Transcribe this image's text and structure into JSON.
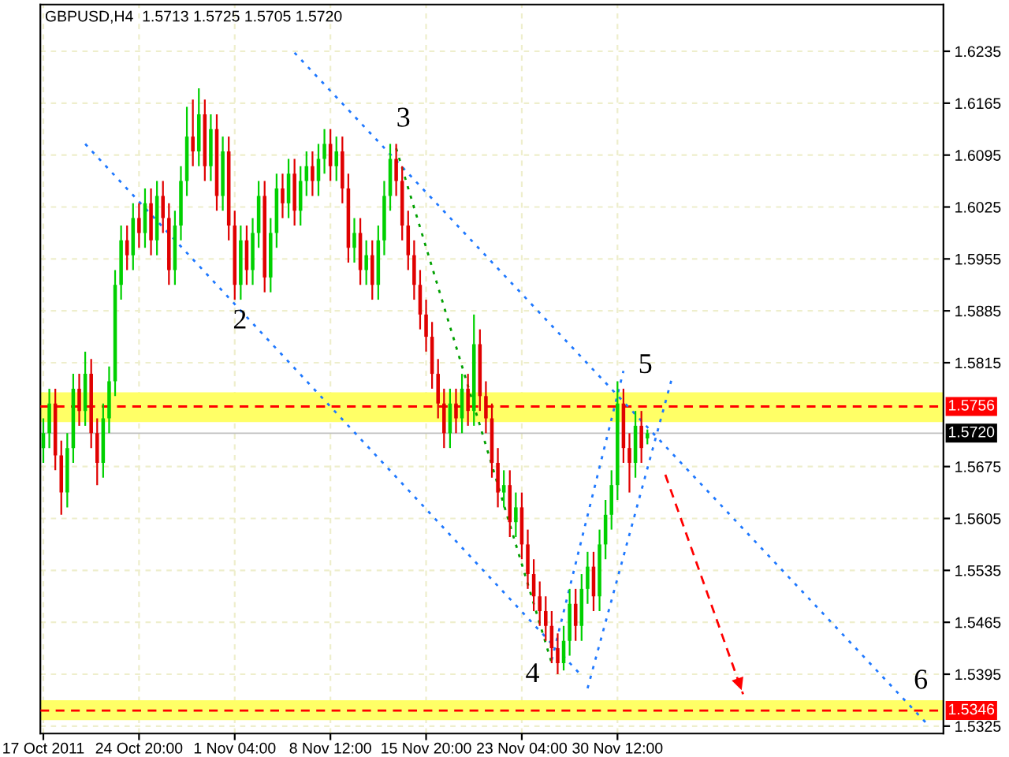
{
  "chart_data": {
    "type": "candlestick",
    "title": "GBPUSD,H4  1.5713 1.5725 1.5705 1.5720",
    "categories": [
      "17 Oct 2011",
      null,
      null,
      null,
      null,
      null,
      null,
      null,
      null,
      null,
      null,
      null,
      null,
      null,
      null,
      null,
      "24 Oct 20:00",
      null,
      null,
      null,
      null,
      null,
      null,
      null,
      null,
      null,
      null,
      null,
      null,
      null,
      null,
      null,
      "1 Nov 04:00",
      null,
      null,
      null,
      null,
      null,
      null,
      null,
      null,
      null,
      null,
      null,
      null,
      null,
      null,
      null,
      "8 Nov 12:00",
      null,
      null,
      null,
      null,
      null,
      null,
      null,
      null,
      null,
      null,
      null,
      null,
      null,
      null,
      null,
      "15 Nov 20:00",
      null,
      null,
      null,
      null,
      null,
      null,
      null,
      null,
      null,
      null,
      null,
      null,
      null,
      null,
      null,
      "23 Nov 04:00",
      null,
      null,
      null,
      null,
      null,
      null,
      null,
      null,
      null,
      null,
      null,
      null,
      null,
      null,
      null,
      "30 Nov 12:00",
      null,
      null,
      null,
      null,
      null,
      null,
      null,
      null,
      null,
      null,
      null,
      null,
      null,
      null,
      null,
      null,
      null,
      null,
      null,
      null,
      null,
      null,
      null,
      null,
      null,
      null,
      null,
      null,
      null,
      null,
      null,
      null,
      null,
      null,
      null,
      null,
      null,
      null,
      null,
      null,
      null,
      null,
      null,
      null,
      null,
      null,
      null,
      null,
      null,
      null,
      null,
      null,
      null,
      null
    ],
    "ohlc": [
      [
        1.57,
        1.574,
        1.568,
        1.572
      ],
      [
        1.572,
        1.578,
        1.57,
        1.576
      ],
      [
        1.576,
        1.578,
        1.567,
        1.569
      ],
      [
        1.569,
        1.571,
        1.561,
        1.564
      ],
      [
        1.564,
        1.572,
        1.562,
        1.57
      ],
      [
        1.57,
        1.58,
        1.568,
        1.578
      ],
      [
        1.578,
        1.58,
        1.573,
        1.575
      ],
      [
        1.575,
        1.583,
        1.573,
        1.58
      ],
      [
        1.58,
        1.582,
        1.57,
        1.572
      ],
      [
        1.572,
        1.574,
        1.565,
        1.568
      ],
      [
        1.568,
        1.576,
        1.566,
        1.574
      ],
      [
        1.574,
        1.581,
        1.572,
        1.579
      ],
      [
        1.579,
        1.594,
        1.577,
        1.592
      ],
      [
        1.592,
        1.6,
        1.59,
        1.598
      ],
      [
        1.598,
        1.6,
        1.594,
        1.596
      ],
      [
        1.596,
        1.603,
        1.594,
        1.601
      ],
      [
        1.601,
        1.603,
        1.597,
        1.599
      ],
      [
        1.599,
        1.605,
        1.597,
        1.603
      ],
      [
        1.603,
        1.605,
        1.596,
        1.598
      ],
      [
        1.598,
        1.606,
        1.596,
        1.604
      ],
      [
        1.604,
        1.606,
        1.599,
        1.601
      ],
      [
        1.601,
        1.603,
        1.592,
        1.594
      ],
      [
        1.594,
        1.602,
        1.592,
        1.6
      ],
      [
        1.6,
        1.608,
        1.598,
        1.606
      ],
      [
        1.606,
        1.616,
        1.604,
        1.612
      ],
      [
        1.612,
        1.617,
        1.608,
        1.61
      ],
      [
        1.61,
        1.6185,
        1.608,
        1.615
      ],
      [
        1.615,
        1.617,
        1.606,
        1.608
      ],
      [
        1.608,
        1.615,
        1.606,
        1.613
      ],
      [
        1.613,
        1.615,
        1.602,
        1.604
      ],
      [
        1.604,
        1.612,
        1.602,
        1.61
      ],
      [
        1.61,
        1.612,
        1.598,
        1.6
      ],
      [
        1.6,
        1.602,
        1.59,
        1.592
      ],
      [
        1.592,
        1.6,
        1.59,
        1.598
      ],
      [
        1.598,
        1.6,
        1.592,
        1.594
      ],
      [
        1.594,
        1.601,
        1.592,
        1.599
      ],
      [
        1.599,
        1.606,
        1.597,
        1.604
      ],
      [
        1.604,
        1.606,
        1.591,
        1.593
      ],
      [
        1.593,
        1.601,
        1.591,
        1.599
      ],
      [
        1.599,
        1.607,
        1.597,
        1.605
      ],
      [
        1.605,
        1.607,
        1.601,
        1.603
      ],
      [
        1.603,
        1.609,
        1.601,
        1.607
      ],
      [
        1.607,
        1.609,
        1.6,
        1.602
      ],
      [
        1.602,
        1.608,
        1.6,
        1.606
      ],
      [
        1.606,
        1.61,
        1.604,
        1.608
      ],
      [
        1.608,
        1.61,
        1.604,
        1.606
      ],
      [
        1.606,
        1.611,
        1.604,
        1.609
      ],
      [
        1.609,
        1.613,
        1.607,
        1.611
      ],
      [
        1.611,
        1.613,
        1.606,
        1.608
      ],
      [
        1.608,
        1.612,
        1.606,
        1.61
      ],
      [
        1.61,
        1.612,
        1.603,
        1.605
      ],
      [
        1.605,
        1.607,
        1.595,
        1.597
      ],
      [
        1.597,
        1.601,
        1.595,
        1.599
      ],
      [
        1.599,
        1.601,
        1.592,
        1.594
      ],
      [
        1.594,
        1.598,
        1.592,
        1.596
      ],
      [
        1.596,
        1.598,
        1.59,
        1.592
      ],
      [
        1.592,
        1.6,
        1.59,
        1.598
      ],
      [
        1.598,
        1.606,
        1.596,
        1.604
      ],
      [
        1.604,
        1.611,
        1.602,
        1.609
      ],
      [
        1.609,
        1.611,
        1.604,
        1.606
      ],
      [
        1.606,
        1.608,
        1.598,
        1.6
      ],
      [
        1.6,
        1.602,
        1.594,
        1.596
      ],
      [
        1.596,
        1.598,
        1.59,
        1.592
      ],
      [
        1.592,
        1.594,
        1.586,
        1.588
      ],
      [
        1.588,
        1.59,
        1.583,
        1.585
      ],
      [
        1.585,
        1.587,
        1.578,
        1.58
      ],
      [
        1.58,
        1.582,
        1.574,
        1.576
      ],
      [
        1.576,
        1.578,
        1.57,
        1.572
      ],
      [
        1.572,
        1.578,
        1.57,
        1.576
      ],
      [
        1.576,
        1.578,
        1.572,
        1.574
      ],
      [
        1.574,
        1.58,
        1.572,
        1.578
      ],
      [
        1.578,
        1.58,
        1.573,
        1.575
      ],
      [
        1.575,
        1.588,
        1.573,
        1.584
      ],
      [
        1.584,
        1.586,
        1.575,
        1.577
      ],
      [
        1.577,
        1.579,
        1.572,
        1.574
      ],
      [
        1.574,
        1.576,
        1.566,
        1.568
      ],
      [
        1.568,
        1.57,
        1.562,
        1.564
      ],
      [
        1.564,
        1.567,
        1.562,
        1.565
      ],
      [
        1.565,
        1.567,
        1.558,
        1.56
      ],
      [
        1.56,
        1.564,
        1.558,
        1.562
      ],
      [
        1.562,
        1.564,
        1.555,
        1.557
      ],
      [
        1.557,
        1.559,
        1.551,
        1.553
      ],
      [
        1.553,
        1.555,
        1.548,
        1.55
      ],
      [
        1.55,
        1.552,
        1.546,
        1.548
      ],
      [
        1.548,
        1.55,
        1.544,
        1.546
      ],
      [
        1.546,
        1.548,
        1.541,
        1.543
      ],
      [
        1.543,
        1.545,
        1.5395,
        1.541
      ],
      [
        1.541,
        1.546,
        1.54,
        1.544
      ],
      [
        1.544,
        1.551,
        1.542,
        1.549
      ],
      [
        1.549,
        1.551,
        1.544,
        1.546
      ],
      [
        1.546,
        1.553,
        1.544,
        1.551
      ],
      [
        1.551,
        1.556,
        1.549,
        1.554
      ],
      [
        1.554,
        1.556,
        1.548,
        1.55
      ],
      [
        1.55,
        1.559,
        1.548,
        1.557
      ],
      [
        1.557,
        1.563,
        1.555,
        1.561
      ],
      [
        1.561,
        1.567,
        1.559,
        1.565
      ],
      [
        1.565,
        1.579,
        1.563,
        1.576
      ],
      [
        1.576,
        1.578,
        1.568,
        1.57
      ],
      [
        1.57,
        1.572,
        1.564,
        1.568
      ],
      [
        1.568,
        1.575,
        1.566,
        1.573
      ],
      [
        1.573,
        1.575,
        1.568,
        1.57
      ],
      [
        1.5713,
        1.5725,
        1.5705,
        1.572
      ],
      null,
      null,
      null,
      null,
      null,
      null,
      null,
      null,
      null,
      null,
      null,
      null,
      null,
      null,
      null,
      null,
      null,
      null,
      null,
      null,
      null,
      null,
      null,
      null,
      null,
      null,
      null,
      null,
      null,
      null,
      null,
      null,
      null,
      null,
      null,
      null,
      null,
      null,
      null,
      null,
      null,
      null,
      null,
      null,
      null,
      null,
      null,
      null,
      null
    ],
    "series": [
      {
        "type": "line",
        "color": "#1e78ff",
        "line_style": "dotted",
        "values": [
          null,
          null,
          null,
          null,
          null,
          null,
          null,
          1.611,
          null,
          null,
          null,
          null,
          null,
          null,
          null,
          null,
          null,
          null,
          null,
          null,
          null,
          null,
          null,
          null,
          null,
          null,
          null,
          null,
          null,
          null,
          null,
          null,
          null,
          null,
          null,
          null,
          null,
          null,
          null,
          null,
          null,
          null,
          null,
          null,
          null,
          null,
          null,
          null,
          null,
          null,
          null,
          null,
          null,
          null,
          null,
          null,
          null,
          null,
          null,
          null,
          null,
          null,
          null,
          null,
          null,
          null,
          null,
          null,
          null,
          null,
          null,
          null,
          null,
          null,
          null,
          null,
          null,
          null,
          null,
          null,
          null,
          null,
          null,
          null,
          null,
          null,
          null,
          null,
          null,
          null,
          1.5393,
          null,
          null,
          null,
          null,
          null,
          null,
          null,
          null,
          null,
          null,
          null,
          null,
          null,
          null,
          null,
          null,
          null,
          null,
          null,
          null,
          null,
          null,
          null,
          null,
          null,
          null,
          null,
          null,
          null,
          null,
          null,
          null,
          null,
          null,
          null,
          null,
          null,
          null,
          null,
          null,
          null,
          null,
          null,
          null,
          null,
          null,
          null,
          null,
          null,
          null,
          null,
          null,
          null,
          null,
          null,
          null,
          null,
          null,
          null,
          null
        ]
      },
      {
        "type": "line",
        "color": "#1e78ff",
        "line_style": "dotted",
        "values": [
          null,
          null,
          null,
          null,
          null,
          null,
          null,
          null,
          null,
          null,
          null,
          null,
          null,
          null,
          null,
          null,
          null,
          null,
          null,
          null,
          null,
          null,
          null,
          null,
          null,
          null,
          null,
          null,
          null,
          null,
          null,
          null,
          null,
          null,
          null,
          null,
          null,
          null,
          null,
          null,
          null,
          null,
          1.6233,
          null,
          null,
          null,
          null,
          null,
          null,
          null,
          null,
          null,
          null,
          null,
          null,
          null,
          null,
          null,
          null,
          null,
          null,
          null,
          null,
          null,
          null,
          null,
          null,
          null,
          null,
          null,
          null,
          null,
          null,
          null,
          null,
          null,
          null,
          null,
          null,
          null,
          null,
          null,
          null,
          null,
          null,
          null,
          null,
          null,
          null,
          null,
          null,
          null,
          null,
          null,
          null,
          null,
          null,
          null,
          null,
          null,
          null,
          null,
          null,
          null,
          null,
          null,
          null,
          null,
          null,
          null,
          null,
          null,
          null,
          null,
          null,
          null,
          null,
          null,
          null,
          null,
          null,
          null,
          null,
          null,
          null,
          null,
          null,
          null,
          null,
          null,
          null,
          null,
          null,
          null,
          null,
          null,
          null,
          null,
          null,
          null,
          null,
          null,
          null,
          null,
          null,
          null,
          null,
          null,
          1.5326,
          null,
          null
        ]
      },
      {
        "type": "line",
        "color": "#1e78ff",
        "line_style": "dotted",
        "values": [
          null,
          null,
          null,
          null,
          null,
          null,
          null,
          null,
          null,
          null,
          null,
          null,
          null,
          null,
          null,
          null,
          null,
          null,
          null,
          null,
          null,
          null,
          null,
          null,
          null,
          null,
          null,
          null,
          null,
          null,
          null,
          null,
          null,
          null,
          null,
          null,
          null,
          null,
          null,
          null,
          null,
          null,
          null,
          null,
          null,
          null,
          null,
          null,
          null,
          null,
          null,
          null,
          null,
          null,
          null,
          null,
          null,
          null,
          null,
          null,
          null,
          null,
          null,
          null,
          null,
          null,
          null,
          null,
          null,
          null,
          null,
          null,
          null,
          null,
          null,
          null,
          null,
          null,
          null,
          null,
          null,
          null,
          null,
          null,
          null,
          1.5414,
          null,
          null,
          null,
          null,
          null,
          null,
          null,
          null,
          null,
          null,
          null,
          1.5804,
          null,
          null,
          null,
          null,
          null,
          null,
          null,
          null,
          null,
          null,
          null,
          null,
          null,
          null,
          null,
          null,
          null,
          null,
          null,
          null,
          null,
          null,
          null,
          null,
          null,
          null,
          null,
          null,
          null,
          null,
          null,
          null,
          null,
          null,
          null,
          null,
          null,
          null,
          null,
          null,
          null,
          null,
          null,
          null,
          null,
          null,
          null,
          null,
          null,
          null,
          null,
          null,
          null
        ]
      },
      {
        "type": "line",
        "color": "#1e78ff",
        "line_style": "dotted",
        "values": [
          null,
          null,
          null,
          null,
          null,
          null,
          null,
          null,
          null,
          null,
          null,
          null,
          null,
          null,
          null,
          null,
          null,
          null,
          null,
          null,
          null,
          null,
          null,
          null,
          null,
          null,
          null,
          null,
          null,
          null,
          null,
          null,
          null,
          null,
          null,
          null,
          null,
          null,
          null,
          null,
          null,
          null,
          null,
          null,
          null,
          null,
          null,
          null,
          null,
          null,
          null,
          null,
          null,
          null,
          null,
          null,
          null,
          null,
          null,
          null,
          null,
          null,
          null,
          null,
          null,
          null,
          null,
          null,
          null,
          null,
          null,
          null,
          null,
          null,
          null,
          null,
          null,
          null,
          null,
          null,
          null,
          null,
          null,
          null,
          null,
          null,
          null,
          null,
          null,
          null,
          null,
          1.5376,
          null,
          null,
          null,
          null,
          null,
          null,
          null,
          null,
          null,
          null,
          null,
          null,
          null,
          1.5791,
          null,
          null,
          null,
          null,
          null,
          null,
          null,
          null,
          null,
          null,
          null,
          null,
          null,
          null,
          null,
          null,
          null,
          null,
          null,
          null,
          null,
          null,
          null,
          null,
          null,
          null,
          null,
          null,
          null,
          null,
          null,
          null,
          null,
          null,
          null,
          null,
          null,
          null,
          null,
          null,
          null,
          null,
          null,
          null,
          null
        ]
      },
      {
        "type": "line",
        "color": "#00a000",
        "line_style": "dotted",
        "values": [
          null,
          null,
          null,
          null,
          null,
          null,
          null,
          null,
          null,
          null,
          null,
          null,
          null,
          null,
          null,
          null,
          null,
          null,
          null,
          null,
          null,
          null,
          null,
          null,
          null,
          null,
          null,
          null,
          null,
          null,
          null,
          null,
          null,
          null,
          null,
          null,
          null,
          null,
          null,
          null,
          null,
          null,
          null,
          null,
          null,
          null,
          null,
          null,
          null,
          null,
          null,
          null,
          null,
          null,
          null,
          null,
          null,
          null,
          null,
          1.6104,
          null,
          null,
          null,
          null,
          null,
          null,
          null,
          null,
          null,
          null,
          null,
          null,
          null,
          null,
          null,
          null,
          null,
          null,
          null,
          null,
          null,
          null,
          null,
          null,
          null,
          1.541,
          null,
          null,
          null,
          null,
          null,
          null,
          null,
          null,
          null,
          null,
          null,
          null,
          null,
          null,
          null,
          null,
          null,
          null,
          null,
          null,
          null,
          null,
          null,
          null,
          null,
          null,
          null,
          null,
          null,
          null,
          null,
          null,
          null,
          null,
          null,
          null,
          null,
          null,
          null,
          null,
          null,
          null,
          null,
          null,
          null,
          null,
          null,
          null,
          null,
          null,
          null,
          null,
          null,
          null,
          null,
          null,
          null,
          null,
          null,
          null,
          null,
          null,
          null,
          null,
          null
        ]
      },
      {
        "type": "line",
        "color": "#ff0000",
        "line_style": "dashed",
        "values": [
          null,
          null,
          null,
          null,
          null,
          null,
          null,
          null,
          null,
          null,
          null,
          null,
          null,
          null,
          null,
          null,
          null,
          null,
          null,
          null,
          null,
          null,
          null,
          null,
          null,
          null,
          null,
          null,
          null,
          null,
          null,
          null,
          null,
          null,
          null,
          null,
          null,
          null,
          null,
          null,
          null,
          null,
          null,
          null,
          null,
          null,
          null,
          null,
          null,
          null,
          null,
          null,
          null,
          null,
          null,
          null,
          null,
          null,
          null,
          null,
          null,
          null,
          null,
          null,
          null,
          null,
          null,
          null,
          null,
          null,
          null,
          null,
          null,
          null,
          null,
          null,
          null,
          null,
          null,
          null,
          null,
          null,
          null,
          null,
          null,
          null,
          null,
          null,
          null,
          null,
          null,
          null,
          null,
          null,
          null,
          null,
          null,
          null,
          null,
          null,
          null,
          null,
          null,
          null,
          1.5664,
          null,
          null,
          null,
          null,
          null,
          null,
          null,
          null,
          null,
          null,
          null,
          null,
          1.5368,
          null,
          null,
          null,
          null,
          null,
          null,
          null,
          null,
          null,
          null,
          null,
          null,
          null,
          null,
          null,
          null,
          null,
          null,
          null,
          null,
          null,
          null,
          null,
          null,
          null,
          null,
          null,
          null,
          null,
          null,
          null,
          null,
          null
        ]
      }
    ],
    "ylim": [
      1.5315,
      1.6298
    ],
    "yticks": [
      1.6235,
      1.6165,
      1.6095,
      1.6025,
      1.5955,
      1.5885,
      1.5815,
      1.5675,
      1.5605,
      1.5535,
      1.5465,
      1.5395,
      1.5325
    ],
    "ref_lines": [
      {
        "axis": "y",
        "value": 1.5756,
        "label": "1.5756",
        "color": "#ff0000",
        "line_style": "dashed"
      },
      {
        "axis": "y",
        "value": 1.5346,
        "label": "1.5346",
        "color": "#ff0000",
        "line_style": "dashed"
      },
      {
        "axis": "y",
        "value": 1.572,
        "label": "1.5720",
        "color": "#000000",
        "line_style": "solid"
      }
    ],
    "bands": [
      {
        "axis": "y",
        "from": 1.5735,
        "to": 1.5775,
        "color": "#ffff66"
      },
      {
        "axis": "y",
        "from": 1.5333,
        "to": 1.536,
        "color": "#ffff66"
      }
    ],
    "annotations": [
      "2",
      "3",
      "4",
      "5",
      "6"
    ],
    "grid": true
  }
}
